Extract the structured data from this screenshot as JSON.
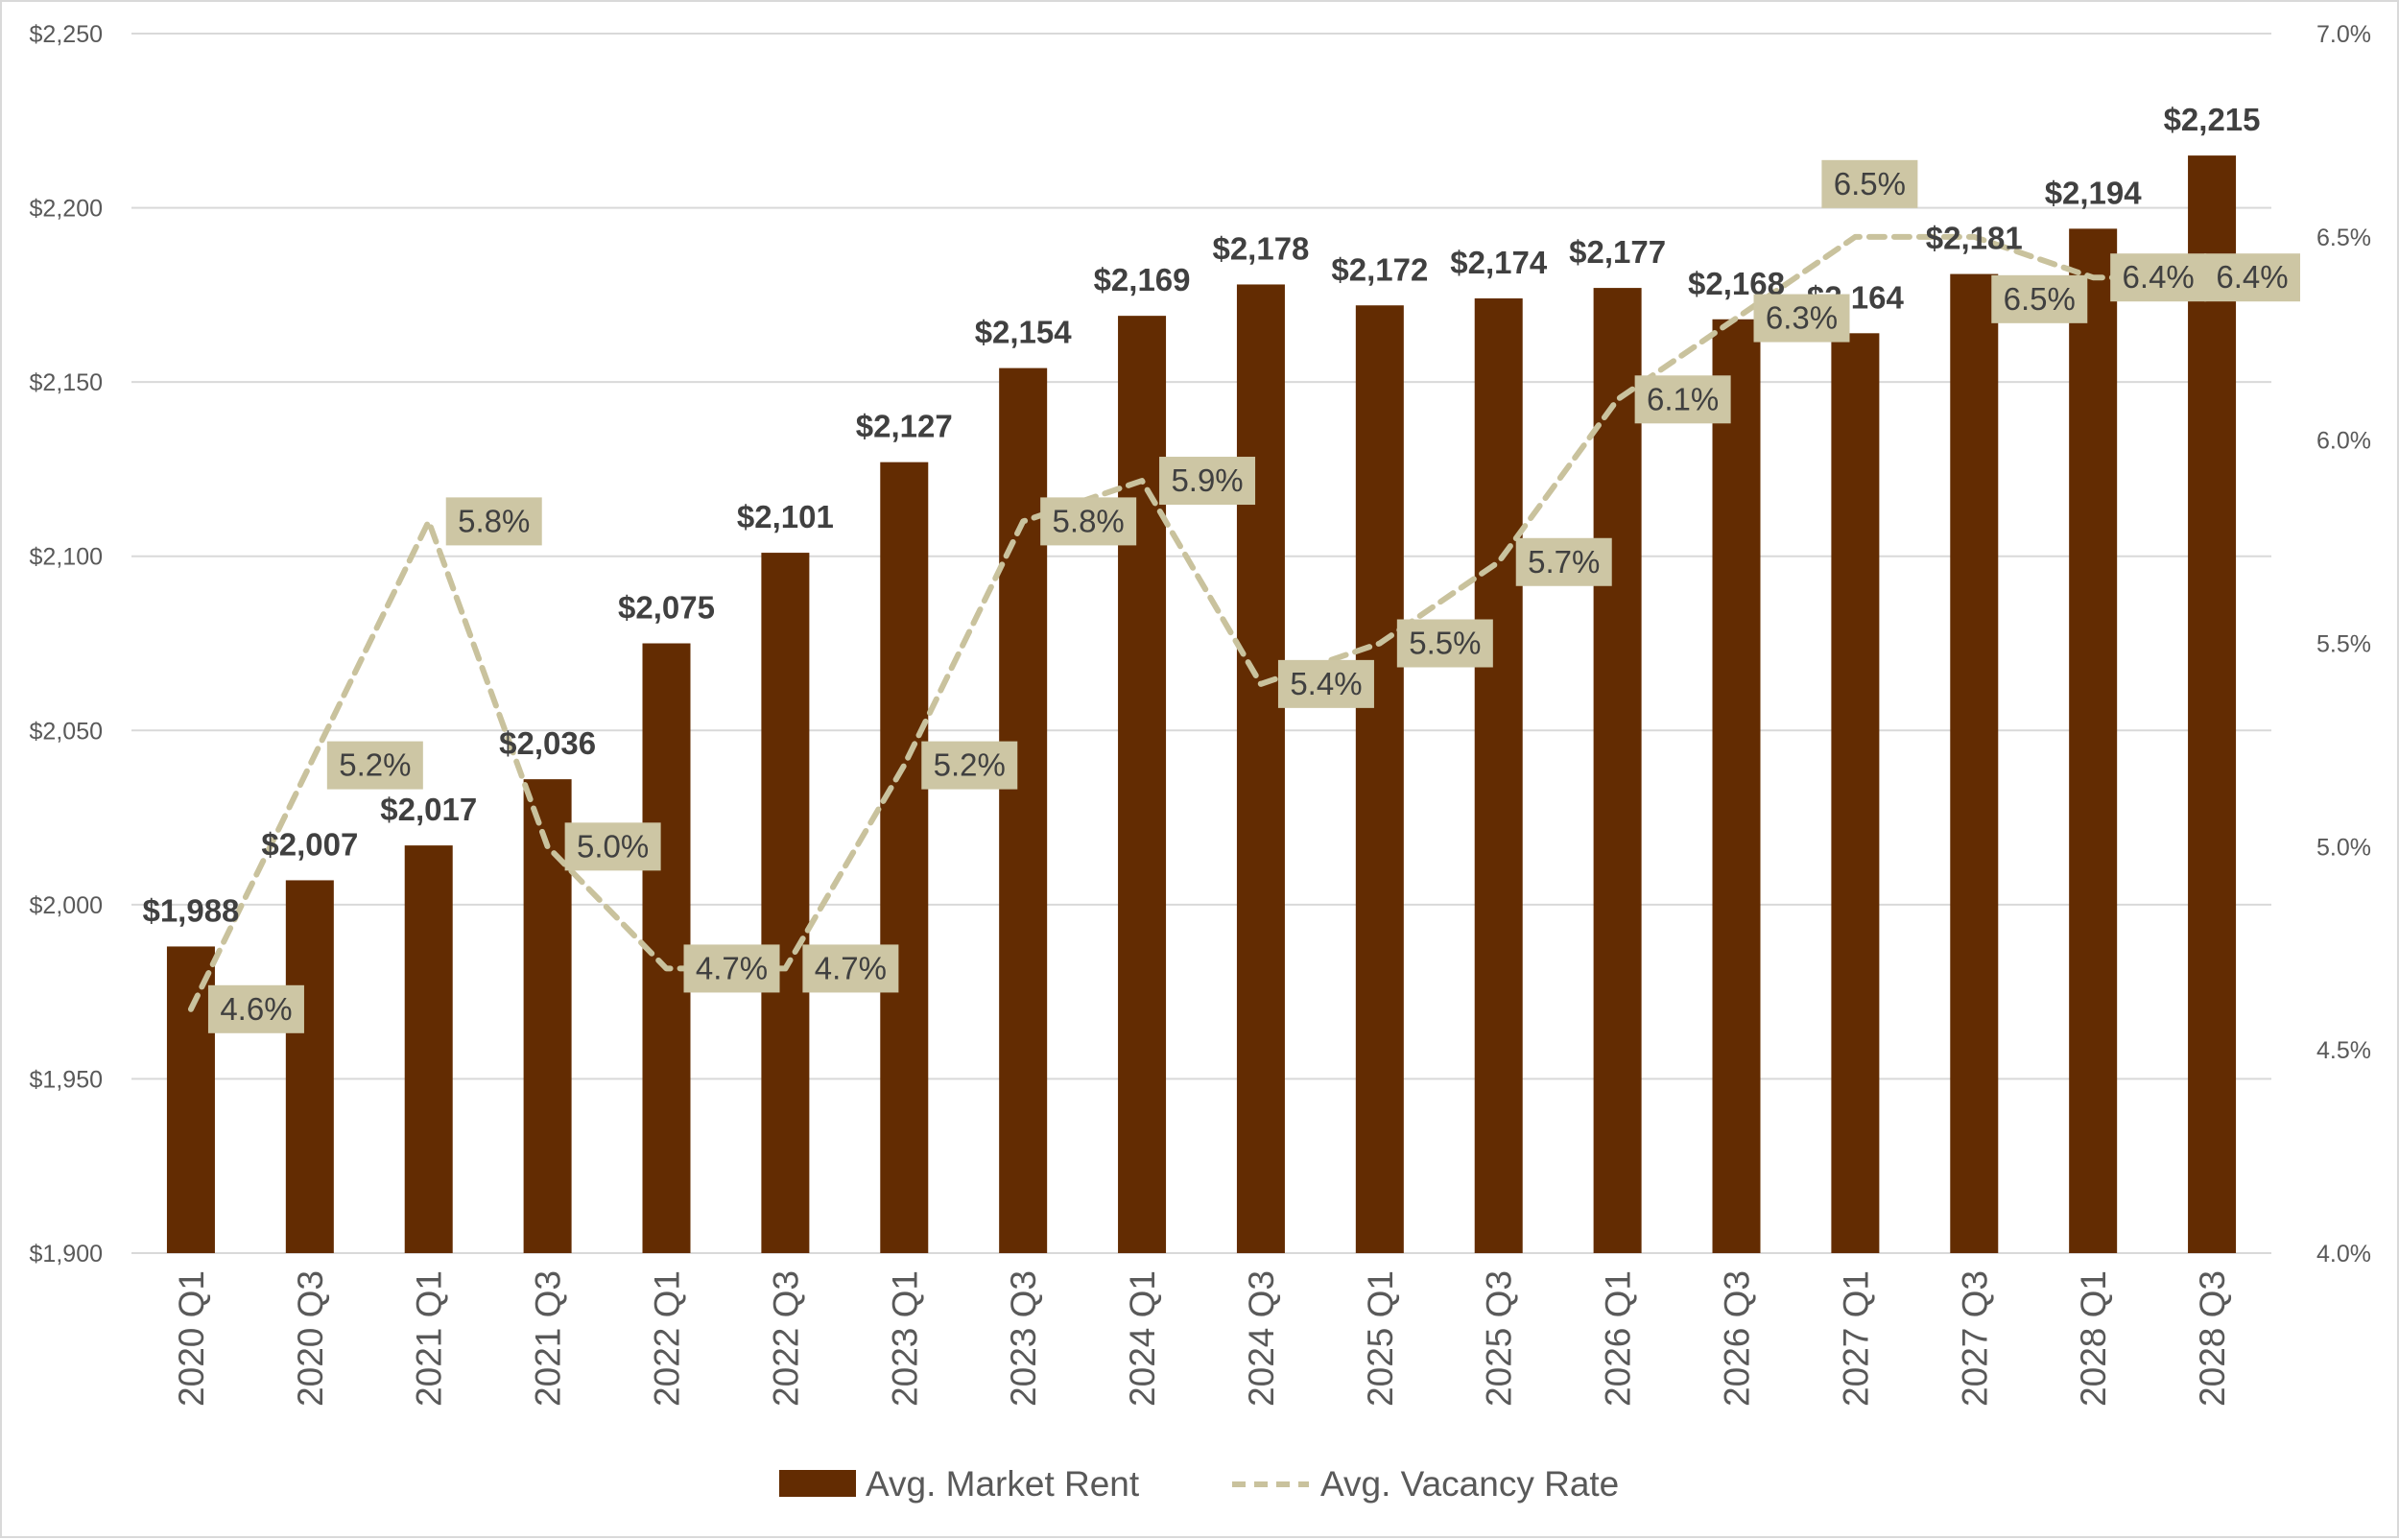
{
  "chart_data": {
    "type": "bar",
    "categories": [
      "2020 Q1",
      "2020 Q3",
      "2021 Q1",
      "2021 Q3",
      "2022 Q1",
      "2022 Q3",
      "2023 Q1",
      "2023 Q3",
      "2024 Q1",
      "2024 Q3",
      "2025 Q1",
      "2025 Q3",
      "2026 Q1",
      "2026 Q3",
      "2027 Q1",
      "2027 Q3",
      "2028 Q1",
      "2028 Q3"
    ],
    "series": [
      {
        "name": "Avg. Market Rent",
        "type": "bar",
        "axis": "left",
        "color": "#632c02",
        "values": [
          1988,
          2007,
          2017,
          2036,
          2075,
          2101,
          2127,
          2154,
          2169,
          2178,
          2172,
          2174,
          2177,
          2168,
          2164,
          2181,
          2194,
          2215
        ],
        "labels": [
          "$1,988",
          "$2,007",
          "$2,017",
          "$2,036",
          "$2,075",
          "$2,101",
          "$2,127",
          "$2,154",
          "$2,169",
          "$2,178",
          "$2,172",
          "$2,174",
          "$2,177",
          "$2,168",
          "$2,164",
          "$2,181",
          "$2,194",
          "$2,215"
        ]
      },
      {
        "name": "Avg. Vacancy Rate",
        "type": "line",
        "style": "dashed",
        "axis": "right",
        "color": "#c9c29d",
        "values": [
          4.6,
          5.2,
          5.8,
          5.0,
          4.7,
          4.7,
          5.2,
          5.8,
          5.9,
          5.4,
          5.5,
          5.7,
          6.1,
          6.3,
          6.5,
          6.5,
          6.4,
          6.4
        ],
        "labels": [
          "4.6%",
          "5.2%",
          "5.8%",
          "5.0%",
          "4.7%",
          "4.7%",
          "5.2%",
          "5.8%",
          "5.9%",
          "5.4%",
          "5.5%",
          "5.7%",
          "6.1%",
          "6.3%",
          "6.5%",
          "6.5%",
          "6.4%",
          "6.4%"
        ]
      }
    ],
    "y_left": {
      "ylim": [
        1900,
        2250
      ],
      "ticks": [
        "$1,900",
        "$1,950",
        "$2,000",
        "$2,050",
        "$2,100",
        "$2,150",
        "$2,200",
        "$2,250"
      ]
    },
    "y_right": {
      "ylim": [
        4.0,
        7.0
      ],
      "ticks": [
        "4.0%",
        "4.5%",
        "5.0%",
        "5.5%",
        "6.0%",
        "6.5%",
        "7.0%"
      ]
    },
    "grid": true,
    "legend": "bottom"
  }
}
